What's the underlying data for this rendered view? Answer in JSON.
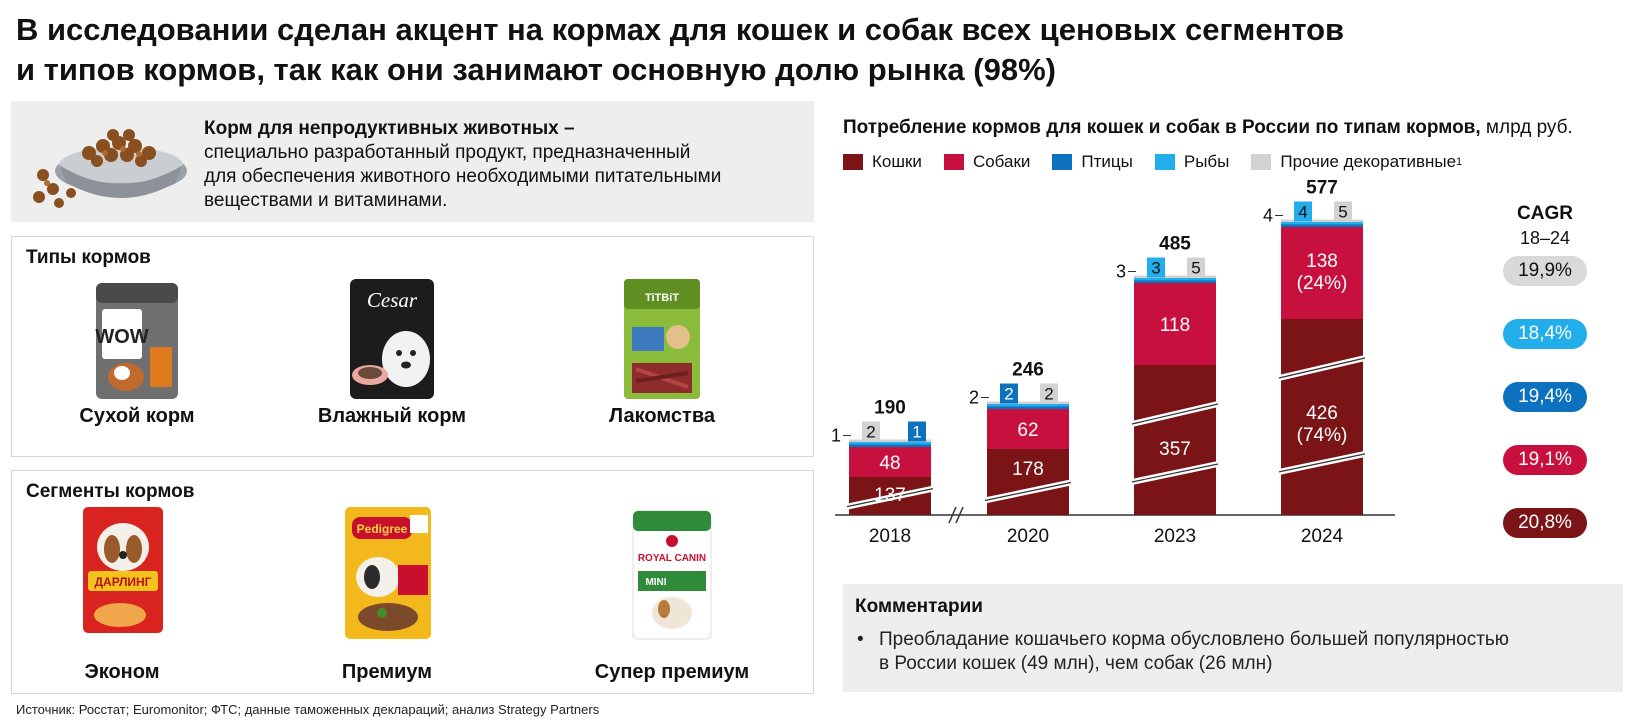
{
  "title_line1": "В исследовании сделан акцент на кормах для кошек и собак всех ценовых сегментов",
  "title_line2": "и типов кормов, так как они занимают основную долю рынка (98%)",
  "definition": {
    "term": "Корм для непродуктивных животных –",
    "line1": "специально разработанный продукт, предназначенный",
    "line2": "для обеспечения животного необходимыми питательными",
    "line3": "веществами и витаминами."
  },
  "types": {
    "title": "Типы кормов",
    "items": [
      {
        "label": "Сухой корм",
        "pkg_text": "WOW"
      },
      {
        "label": "Влажный корм",
        "pkg_text": "Cesar"
      },
      {
        "label": "Лакомства",
        "pkg_text": "TiTBiT"
      }
    ]
  },
  "segments": {
    "title": "Сегменты кормов",
    "items": [
      {
        "label": "Эконом",
        "pkg_text": "ДАРЛИНГ"
      },
      {
        "label": "Премиум",
        "pkg_text": "Pedigree"
      },
      {
        "label": "Супер премиум",
        "pkg_text": "ROYAL CANIN",
        "pkg_sub": "MINI"
      }
    ]
  },
  "chart_title_bold": "Потребление кормов для кошек и собак в России по типам кормов,",
  "chart_title_unit": " млрд руб.",
  "legend": [
    {
      "name": "Кошки",
      "color": "#7b1416"
    },
    {
      "name": "Собаки",
      "color": "#c8103f"
    },
    {
      "name": "Птицы",
      "color": "#0c72bf"
    },
    {
      "name": "Рыбы",
      "color": "#21aeea"
    },
    {
      "name": "Прочие декоративные",
      "color": "#d2d2d2",
      "sup": "1"
    }
  ],
  "chart_data": {
    "type": "bar",
    "stacked": true,
    "categories": [
      "2018",
      "2020",
      "2023",
      "2024"
    ],
    "totals": [
      190,
      246,
      485,
      577
    ],
    "series": [
      {
        "name": "Кошки",
        "color": "#7b1416",
        "values": [
          137,
          178,
          357,
          426
        ],
        "labels": [
          "137",
          "178",
          "357",
          "426\n(74%)"
        ]
      },
      {
        "name": "Собаки",
        "color": "#c8103f",
        "values": [
          48,
          62,
          118,
          138
        ],
        "labels": [
          "48",
          "62",
          "118",
          "138\n(24%)"
        ]
      },
      {
        "name": "Птицы",
        "color": "#0c72bf",
        "values": [
          1,
          2,
          3,
          4
        ],
        "labels": [
          "1",
          "2",
          "3",
          "4"
        ]
      },
      {
        "name": "Рыбы",
        "color": "#21aeea",
        "values": [
          1,
          2,
          3,
          4
        ],
        "labels": [
          "1",
          "2",
          "3",
          "4"
        ]
      },
      {
        "name": "Прочие декоративные",
        "color": "#d2d2d2",
        "values": [
          2,
          2,
          5,
          5
        ],
        "labels": [
          "2",
          "2",
          "5",
          "5"
        ]
      }
    ],
    "axis_break": "between 2018 and 2020",
    "cagr": {
      "title": "CAGR",
      "period": "18–24",
      "values": [
        {
          "series": "Прочие декоративные",
          "value": "19,9%",
          "color": "#d9d9d9",
          "text_color": "#111111"
        },
        {
          "series": "Рыбы",
          "value": "18,4%",
          "color": "#21aeea",
          "text_color": "#ffffff"
        },
        {
          "series": "Птицы",
          "value": "19,4%",
          "color": "#0c72bf",
          "text_color": "#ffffff"
        },
        {
          "series": "Собаки",
          "value": "19,1%",
          "color": "#c8103f",
          "text_color": "#ffffff"
        },
        {
          "series": "Кошки",
          "value": "20,8%",
          "color": "#7b1416",
          "text_color": "#ffffff"
        }
      ]
    }
  },
  "comments": {
    "title": "Комментарии",
    "items": [
      "Преобладание кошачьего корма обусловлено большей популярностью",
      "в России кошек  (49 млн), чем собак (26 млн)"
    ]
  },
  "source": "Источник: Росстат; Euromonitor; ФТС; данные таможенных деклараций; анализ Strategy Partners"
}
